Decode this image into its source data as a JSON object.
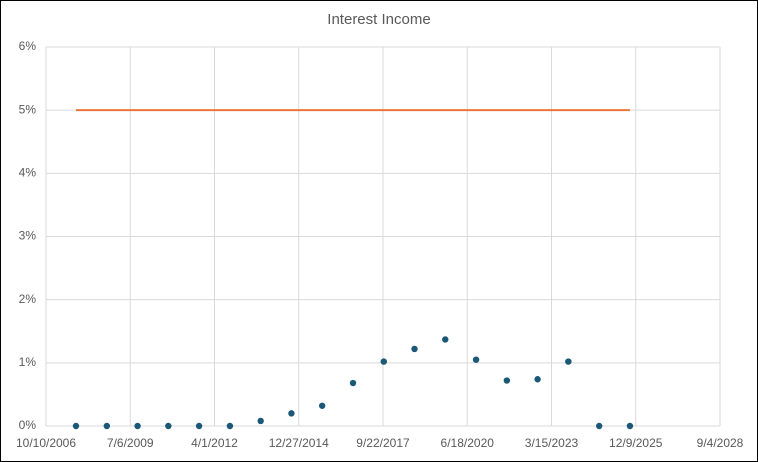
{
  "chart_data": {
    "type": "scatter",
    "title": "Interest Income",
    "xlim": [
      "2006-10-10",
      "2028-09-04"
    ],
    "xticks": [
      {
        "value": "2006-10-10",
        "label": "10/10/2006"
      },
      {
        "value": "2009-07-06",
        "label": "7/6/2009"
      },
      {
        "value": "2012-04-01",
        "label": "4/1/2012"
      },
      {
        "value": "2014-12-27",
        "label": "12/27/2014"
      },
      {
        "value": "2017-09-22",
        "label": "9/22/2017"
      },
      {
        "value": "2020-06-18",
        "label": "6/18/2020"
      },
      {
        "value": "2023-03-15",
        "label": "3/15/2023"
      },
      {
        "value": "2025-12-09",
        "label": "12/9/2025"
      },
      {
        "value": "2028-09-04",
        "label": "9/4/2028"
      }
    ],
    "ylim": [
      0,
      6
    ],
    "yticks": [
      {
        "value": 0,
        "label": "0%"
      },
      {
        "value": 1,
        "label": "1%"
      },
      {
        "value": 2,
        "label": "2%"
      },
      {
        "value": 3,
        "label": "3%"
      },
      {
        "value": 4,
        "label": "4%"
      },
      {
        "value": 5,
        "label": "5%"
      },
      {
        "value": 6,
        "label": "6%"
      }
    ],
    "grid": true,
    "series": [
      {
        "type": "scatter",
        "color": "#1b5876",
        "x": [
          "2007-10-01",
          "2008-10-01",
          "2009-10-01",
          "2010-10-01",
          "2011-10-01",
          "2012-10-01",
          "2013-10-01",
          "2014-10-01",
          "2015-10-01",
          "2016-10-01",
          "2017-10-01",
          "2018-10-01",
          "2019-10-01",
          "2020-10-01",
          "2021-10-01",
          "2022-10-01",
          "2023-10-01",
          "2024-10-01",
          "2025-10-01"
        ],
        "values": [
          0,
          0,
          0,
          0,
          0,
          0,
          0.08,
          0.2,
          0.32,
          0.68,
          1.02,
          1.22,
          1.37,
          1.05,
          0.72,
          0.74,
          1.02,
          0,
          0
        ]
      },
      {
        "type": "line",
        "color": "#e8763a",
        "x": [
          "2007-10-01",
          "2025-10-01"
        ],
        "values": [
          5,
          5
        ]
      }
    ]
  }
}
